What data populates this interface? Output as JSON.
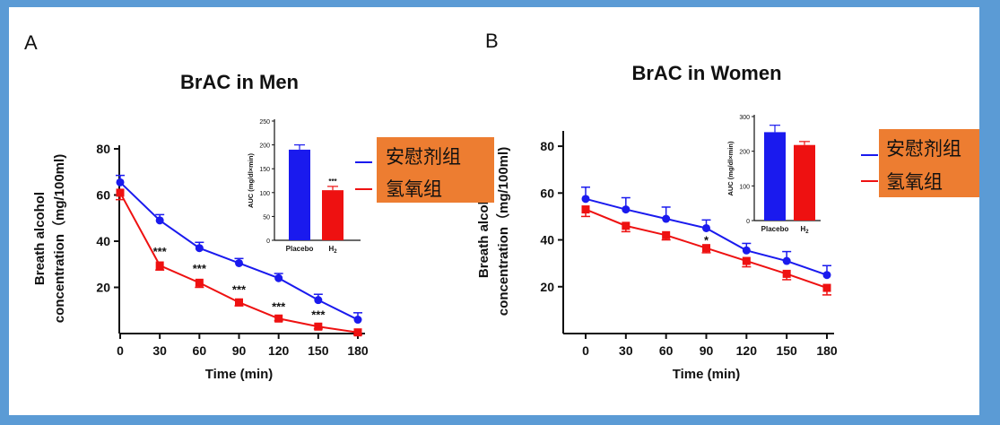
{
  "panels": [
    {
      "letter": "A",
      "legend": [
        "安慰剂组",
        "氢氧组"
      ]
    },
    {
      "letter": "B",
      "legend": [
        "安慰剂组",
        "氢氧组"
      ]
    }
  ],
  "colors": {
    "placebo": "#1a1aee",
    "h2": "#ee1111",
    "legend_bg": "#ed7d31",
    "frame": "#5b9bd5"
  },
  "chart_data": [
    {
      "type": "line",
      "title": "BrAC in Men",
      "xlabel": "Time (min)",
      "ylabel": [
        "Breath alcohol",
        "concentration（mg/100ml)"
      ],
      "x": [
        0,
        30,
        60,
        90,
        120,
        150,
        180
      ],
      "xticks": [
        "0",
        "30",
        "60",
        "90",
        "120",
        "150",
        "180"
      ],
      "ylim": [
        0,
        80
      ],
      "yticks": [
        20,
        40,
        60,
        80
      ],
      "series": [
        {
          "name": "安慰剂组",
          "values": [
            65.5,
            49,
            37,
            30.5,
            24,
            14.5,
            6
          ],
          "errors": [
            3,
            2.5,
            2.5,
            2,
            2,
            2.5,
            3
          ]
        },
        {
          "name": "氢氧组",
          "values": [
            61,
            29.5,
            22,
            13.5,
            6.5,
            3,
            0.5
          ],
          "errors": [
            3,
            2,
            2,
            1.5,
            1,
            1,
            1
          ]
        }
      ],
      "annotations": [
        {
          "x": 30,
          "text": "***"
        },
        {
          "x": 60,
          "text": "***"
        },
        {
          "x": 90,
          "text": "***"
        },
        {
          "x": 120,
          "text": "***"
        },
        {
          "x": 150,
          "text": "***"
        }
      ],
      "inset": {
        "type": "bar",
        "ylabel": "AUC (mg/dl×min)",
        "ylim": [
          0,
          250
        ],
        "yticks": [
          0,
          50,
          100,
          150,
          200,
          250
        ],
        "categories": [
          "Placebo",
          "H2"
        ],
        "values": [
          190,
          105
        ],
        "errors": [
          10,
          8
        ],
        "annotation": "***"
      }
    },
    {
      "type": "line",
      "title": "BrAC in Women",
      "xlabel": "Time (min)",
      "ylabel": [
        "Breath alcohol",
        "concentration（mg/100ml)"
      ],
      "x": [
        0,
        30,
        60,
        90,
        120,
        150,
        180
      ],
      "xticks": [
        "0",
        "30",
        "60",
        "90",
        "120",
        "150",
        "180"
      ],
      "ylim": [
        0,
        85
      ],
      "yticks": [
        20,
        40,
        60,
        80
      ],
      "series": [
        {
          "name": "安慰剂组",
          "values": [
            57.5,
            53,
            49,
            45,
            35.5,
            31,
            25
          ],
          "errors": [
            5,
            5,
            5,
            3.5,
            3,
            4,
            4
          ]
        },
        {
          "name": "氢氧组",
          "values": [
            53,
            46,
            42,
            36.5,
            31,
            25.5,
            19.5
          ],
          "errors": [
            3,
            2.5,
            2,
            2,
            2.5,
            2.5,
            3
          ]
        }
      ],
      "annotations": [
        {
          "x": 90,
          "text": "*"
        }
      ],
      "inset": {
        "type": "bar",
        "ylabel": "AUC (mg/dl×min)",
        "ylim": [
          0,
          300
        ],
        "yticks": [
          0,
          100,
          200,
          300
        ],
        "categories": [
          "Placebo",
          "H2"
        ],
        "values": [
          255,
          218
        ],
        "errors": [
          20,
          10
        ],
        "annotation": ""
      }
    }
  ]
}
